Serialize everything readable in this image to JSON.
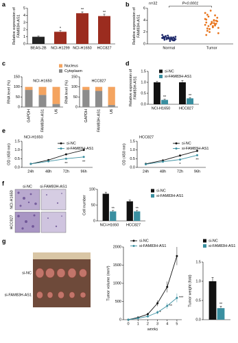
{
  "chart_data": [
    {
      "type": "bar",
      "panel": "a",
      "ylabel": [
        "Relative expression of",
        "FAM83H-AS1"
      ],
      "categories": [
        "BEAS-2B",
        "NCI-H1299",
        "NCI-H1650",
        "HCC827"
      ],
      "values": [
        1.0,
        1.7,
        4.3,
        3.9
      ],
      "errors": [
        0.1,
        0.15,
        0.2,
        0.25
      ],
      "significance": [
        null,
        "*",
        "**",
        "**"
      ],
      "colors": [
        "#222222",
        "#9b2c1f",
        "#9b2c1f",
        "#9b2c1f"
      ],
      "ylim": [
        0,
        5
      ],
      "yticks": [
        0,
        1,
        2,
        3,
        4,
        5
      ]
    },
    {
      "type": "scatter",
      "panel": "b",
      "subtitle": "n=32",
      "annotation": "P<0.0001",
      "ylabel": [
        "Relative expression of",
        "FAM83H-AS1"
      ],
      "categories": [
        "Normal",
        "Tumor"
      ],
      "colors": [
        "#1f2a6b",
        "#e8731a"
      ],
      "values": [
        [
          1.0,
          0.8,
          1.2,
          0.9,
          1.1,
          0.7,
          1.3,
          0.6,
          1.0,
          0.9,
          1.4,
          0.8,
          1.1,
          1.0,
          0.5,
          1.2,
          0.9,
          1.0,
          0.7,
          1.3,
          1.1,
          0.8,
          0.6,
          1.0,
          1.2,
          0.9,
          1.5,
          0.8,
          1.0,
          1.1,
          0.7,
          0.9
        ],
        [
          3.2,
          2.8,
          4.1,
          3.5,
          2.2,
          4.8,
          3.0,
          3.9,
          2.5,
          4.4,
          3.3,
          1.8,
          3.7,
          5.2,
          2.9,
          3.6,
          4.0,
          2.6,
          3.1,
          4.6,
          3.4,
          2.0,
          3.8,
          5.6,
          2.7,
          3.5,
          4.2,
          3.0,
          1.5,
          3.9,
          4.9,
          3.3
        ]
      ],
      "ylim": [
        0,
        6
      ],
      "yticks": [
        0,
        2,
        4,
        6
      ]
    },
    {
      "type": "stacked_bar",
      "panel": "c",
      "title": "NCI-H1650",
      "ylabel": [
        "RNA level (%)"
      ],
      "categories": [
        "GAPDH",
        "FAM83H-AS1",
        "U6"
      ],
      "series": [
        {
          "name": "Cytoplasm",
          "color": "#8c8c8c",
          "values": [
            85,
            60,
            15
          ]
        },
        {
          "name": "Nucleus",
          "color": "#f4a460",
          "values": [
            15,
            40,
            85
          ]
        }
      ],
      "ylim": [
        0,
        150
      ],
      "yticks": [
        0,
        50,
        100,
        150
      ],
      "legend": "top-right"
    },
    {
      "type": "stacked_bar",
      "title": "HCC827",
      "ylabel": [
        "RNA level (%)"
      ],
      "categories": [
        "GAPDH",
        "FAM83H-AS1",
        "U6"
      ],
      "series": [
        {
          "color": "#8c8c8c",
          "values": [
            85,
            80,
            10
          ]
        },
        {
          "color": "#f4a460",
          "values": [
            15,
            20,
            90
          ]
        }
      ],
      "ylim": [
        0,
        150
      ],
      "yticks": [
        0,
        50,
        100,
        150
      ]
    },
    {
      "type": "bar",
      "panel": "d",
      "ylabel": [
        "Relative expression of",
        "FAM83H-AS1"
      ],
      "categories": [
        "NCI-H1650",
        "HCC827"
      ],
      "series": [
        {
          "name": "si-NC",
          "color": "#111111",
          "values": [
            1.0,
            1.0
          ],
          "errors": [
            0.04,
            0.08
          ]
        },
        {
          "name": "si-FAM83H-AS1",
          "color": "#3a8fa0",
          "values": [
            0.2,
            0.27
          ],
          "errors": [
            0.03,
            0.03
          ],
          "significance": [
            "**",
            "**"
          ]
        }
      ],
      "ylim": [
        0,
        1.5
      ],
      "yticks": [
        {
          "value": 0,
          "label": "0.0"
        },
        {
          "value": 0.5,
          "label": "0.5"
        },
        {
          "value": 1,
          "label": "1.0"
        },
        {
          "value": 1.5,
          "label": "1.5"
        }
      ],
      "legend": "top-right"
    },
    {
      "type": "line",
      "panel": "e",
      "title": "NCI-H1650",
      "ylabel": [
        "OD (450 nm)"
      ],
      "categories": [
        "24h",
        "48h",
        "72h",
        "96h"
      ],
      "series": [
        {
          "name": "si-NC",
          "color": "#111111",
          "values": [
            0.2,
            0.42,
            0.75,
            1.0
          ],
          "errors": [
            0.02,
            0.03,
            0.04,
            0.05
          ]
        },
        {
          "name": "si-FAM83H-AS1",
          "color": "#3a8fa0",
          "values": [
            0.2,
            0.35,
            0.5,
            0.6
          ],
          "errors": [
            0.02,
            0.03,
            0.03,
            0.04
          ],
          "significance": [
            null,
            null,
            "**",
            "**"
          ]
        }
      ],
      "ylim": [
        0,
        1.5
      ],
      "yticks": [
        {
          "value": 0,
          "label": "0.0"
        },
        {
          "value": 0.5,
          "label": "0.5"
        },
        {
          "value": 1,
          "label": "1.0"
        },
        {
          "value": 1.5,
          "label": "1.5"
        }
      ],
      "legend": "top-right"
    },
    {
      "type": "line",
      "title": "HCC827",
      "ylabel": [
        "OD (450 nm)"
      ],
      "categories": [
        "24h",
        "48h",
        "72h",
        "96h"
      ],
      "series": [
        {
          "name": "si-NC",
          "color": "#111111",
          "values": [
            0.2,
            0.4,
            0.68,
            0.95
          ],
          "errors": [
            0.02,
            0.03,
            0.04,
            0.05
          ]
        },
        {
          "name": "si-FAM83H-AS1",
          "color": "#3a8fa0",
          "values": [
            0.18,
            0.33,
            0.45,
            0.7
          ],
          "errors": [
            0.02,
            0.03,
            0.03,
            0.04
          ],
          "significance": [
            null,
            null,
            "*",
            "**"
          ]
        }
      ],
      "ylim": [
        0,
        1.5
      ],
      "yticks": [
        {
          "value": 0,
          "label": "0.0"
        },
        {
          "value": 0.5,
          "label": "0.5"
        },
        {
          "value": 1,
          "label": "1.0"
        },
        {
          "value": 1.5,
          "label": "1.5"
        }
      ],
      "legend": "top-right"
    },
    {
      "type": "bar",
      "ylabel": [
        "Cell number"
      ],
      "categories": [
        "NCI-H1650",
        "HCC827"
      ],
      "series": [
        {
          "name": "si-NC",
          "color": "#111111",
          "values": [
            86,
            62
          ],
          "errors": [
            5,
            4
          ]
        },
        {
          "name": "si-FAM83H-AS1",
          "color": "#3a8fa0",
          "values": [
            30,
            30
          ],
          "errors": [
            3,
            3
          ],
          "significance": [
            "**",
            "**"
          ]
        }
      ],
      "ylim": [
        0,
        100
      ],
      "yticks": [
        0,
        50,
        100
      ],
      "legend": "top-right"
    },
    {
      "type": "line",
      "ylabel": [
        "Tumor volume (mm³)"
      ],
      "xlabel": "weeks",
      "x": [
        0,
        1,
        2,
        3,
        4,
        5
      ],
      "xlim": [
        -0.5,
        5.5
      ],
      "xticks": [
        0,
        1,
        2,
        3,
        4,
        5
      ],
      "series": [
        {
          "name": "si-NC",
          "color": "#111111",
          "values": [
            0,
            60,
            150,
            450,
            900,
            1750
          ],
          "errors": [
            0,
            20,
            40,
            80,
            150,
            250
          ]
        },
        {
          "name": "si-FAM83H-AS1",
          "color": "#3a8fa0",
          "values": [
            0,
            40,
            90,
            200,
            380,
            600
          ],
          "errors": [
            0,
            15,
            25,
            50,
            80,
            120
          ],
          "significance": [
            null,
            null,
            null,
            "*",
            "**",
            "***"
          ]
        }
      ],
      "ylim": [
        0,
        2000
      ],
      "yticks": [
        0,
        500,
        1000,
        1500,
        2000
      ],
      "legend": "top-left"
    },
    {
      "type": "bar",
      "ylabel": [
        "Tumor weight (fold)"
      ],
      "categories": [
        null
      ],
      "series": [
        {
          "name": "si-NC",
          "color": "#111111",
          "values": [
            1.0
          ],
          "errors": [
            0.1
          ]
        },
        {
          "name": "si-FAM83H-AS1",
          "color": "#3a8fa0",
          "values": [
            0.3
          ],
          "errors": [
            0.05
          ],
          "significance": [
            "**"
          ]
        }
      ],
      "ylim": [
        0,
        1.5
      ],
      "yticks": [
        {
          "value": 0,
          "label": "0.0"
        },
        {
          "value": 0.5,
          "label": "0.5"
        },
        {
          "value": 1,
          "label": "1.0"
        },
        {
          "value": 1.5,
          "label": "1.5"
        }
      ],
      "legend": "top-left"
    }
  ],
  "micrographs": {
    "panel": "f",
    "columns": [
      "si-NC",
      "si-FAM83H-AS1"
    ],
    "rows": [
      "NCI-H1650",
      "HCC827"
    ]
  },
  "xenograft": {
    "panel": "g",
    "rows": [
      "si-NC",
      "si-FAM83H-AS1"
    ]
  }
}
